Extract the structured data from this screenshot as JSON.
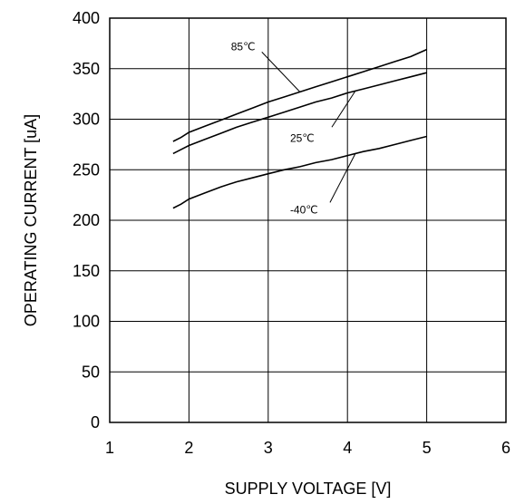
{
  "chart_data": {
    "type": "line",
    "xlabel": "SUPPLY VOLTAGE [V]",
    "ylabel": "OPERATING CURRENT [uA]",
    "xlim": [
      1,
      6
    ],
    "ylim": [
      0,
      400
    ],
    "xticks": [
      1,
      2,
      3,
      4,
      5,
      6
    ],
    "yticks": [
      0,
      50,
      100,
      150,
      200,
      250,
      300,
      350,
      400
    ],
    "grid": true,
    "series": [
      {
        "name": "85℃",
        "x": [
          1.8,
          1.9,
          2.0,
          2.2,
          2.4,
          2.6,
          2.8,
          3.0,
          3.2,
          3.4,
          3.6,
          3.8,
          4.0,
          4.2,
          4.4,
          4.6,
          4.8,
          5.0
        ],
        "y": [
          278,
          282,
          287,
          293,
          299,
          305,
          311,
          317,
          322,
          327,
          332,
          337,
          342,
          347,
          352,
          357,
          362,
          369
        ]
      },
      {
        "name": "25℃",
        "x": [
          1.8,
          1.9,
          2.0,
          2.2,
          2.4,
          2.6,
          2.8,
          3.0,
          3.2,
          3.4,
          3.6,
          3.8,
          4.0,
          4.2,
          4.4,
          4.6,
          4.8,
          5.0
        ],
        "y": [
          266,
          270,
          274,
          280,
          286,
          292,
          297,
          302,
          307,
          312,
          317,
          321,
          326,
          330,
          334,
          338,
          342,
          346
        ]
      },
      {
        "name": "-40℃",
        "x": [
          1.8,
          1.9,
          2.0,
          2.2,
          2.4,
          2.6,
          2.8,
          3.0,
          3.2,
          3.4,
          3.6,
          3.8,
          4.0,
          4.2,
          4.4,
          4.6,
          4.8,
          5.0
        ],
        "y": [
          212,
          216,
          221,
          227,
          233,
          238,
          242,
          246,
          250,
          253,
          257,
          260,
          264,
          268,
          271,
          275,
          279,
          283
        ]
      }
    ],
    "annotations": [
      {
        "text": "85℃",
        "series": "85℃"
      },
      {
        "text": "25℃",
        "series": "25℃"
      },
      {
        "text": "-40℃",
        "series": "-40℃"
      }
    ]
  }
}
